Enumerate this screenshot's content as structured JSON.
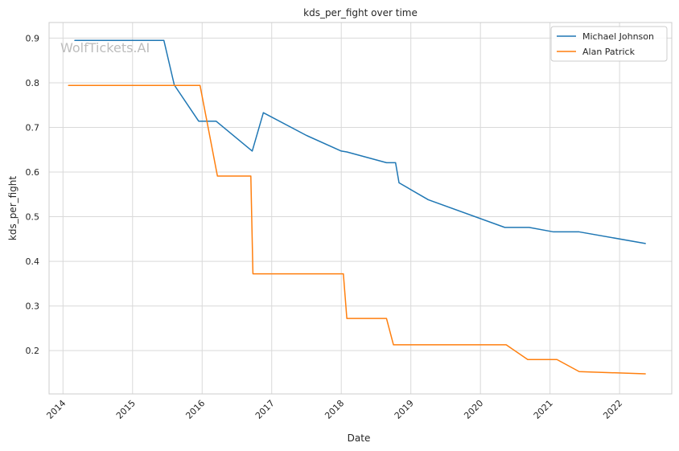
{
  "chart_data": {
    "type": "line",
    "title": "kds_per_fight over time",
    "xlabel": "Date",
    "ylabel": "kds_per_fight",
    "watermark": "WolfTickets.AI",
    "xlim": [
      2013.8,
      2022.75
    ],
    "ylim": [
      0.103,
      0.935
    ],
    "x_ticks": [
      {
        "value": 2014,
        "label": "2014"
      },
      {
        "value": 2015,
        "label": "2015"
      },
      {
        "value": 2016,
        "label": "2016"
      },
      {
        "value": 2017,
        "label": "2017"
      },
      {
        "value": 2018,
        "label": "2018"
      },
      {
        "value": 2019,
        "label": "2019"
      },
      {
        "value": 2020,
        "label": "2020"
      },
      {
        "value": 2021,
        "label": "2021"
      },
      {
        "value": 2022,
        "label": "2022"
      }
    ],
    "y_ticks": [
      {
        "value": 0.2,
        "label": "0.2"
      },
      {
        "value": 0.3,
        "label": "0.3"
      },
      {
        "value": 0.4,
        "label": "0.4"
      },
      {
        "value": 0.5,
        "label": "0.5"
      },
      {
        "value": 0.6,
        "label": "0.6"
      },
      {
        "value": 0.7,
        "label": "0.7"
      },
      {
        "value": 0.8,
        "label": "0.8"
      },
      {
        "value": 0.9,
        "label": "0.9"
      }
    ],
    "grid": true,
    "legend_position": "top-right",
    "series": [
      {
        "name": "Michael Johnson",
        "color": "#1f77b4",
        "points": [
          [
            2014.17,
            0.895
          ],
          [
            2015.45,
            0.895
          ],
          [
            2015.6,
            0.795
          ],
          [
            2015.95,
            0.714
          ],
          [
            2016.2,
            0.714
          ],
          [
            2016.72,
            0.647
          ],
          [
            2016.88,
            0.733
          ],
          [
            2017.5,
            0.682
          ],
          [
            2018.0,
            0.647
          ],
          [
            2018.08,
            0.645
          ],
          [
            2018.65,
            0.621
          ],
          [
            2018.78,
            0.621
          ],
          [
            2018.83,
            0.576
          ],
          [
            2019.25,
            0.538
          ],
          [
            2020.35,
            0.476
          ],
          [
            2020.7,
            0.476
          ],
          [
            2021.05,
            0.466
          ],
          [
            2021.42,
            0.466
          ],
          [
            2022.37,
            0.44
          ]
        ]
      },
      {
        "name": "Alan Patrick",
        "color": "#ff7f0e",
        "points": [
          [
            2014.08,
            0.794
          ],
          [
            2015.97,
            0.794
          ],
          [
            2016.22,
            0.591
          ],
          [
            2016.7,
            0.591
          ],
          [
            2016.73,
            0.372
          ],
          [
            2018.03,
            0.372
          ],
          [
            2018.08,
            0.272
          ],
          [
            2018.65,
            0.272
          ],
          [
            2018.75,
            0.213
          ],
          [
            2020.37,
            0.213
          ],
          [
            2020.68,
            0.18
          ],
          [
            2021.1,
            0.18
          ],
          [
            2021.42,
            0.153
          ],
          [
            2022.37,
            0.148
          ]
        ]
      }
    ]
  }
}
